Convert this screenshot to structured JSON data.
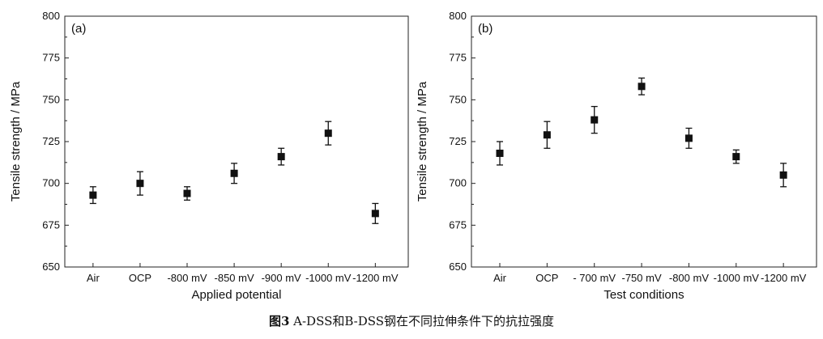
{
  "caption": {
    "figure_label": "图3",
    "text": "A-DSS和B-DSS钢在不同拉伸条件下的抗拉强度"
  },
  "chart_data": [
    {
      "type": "scatter",
      "panel_label": "(a)",
      "xlabel": "Applied potential",
      "ylabel": "Tensile strength / MPa",
      "categories": [
        "Air",
        "OCP",
        "-800 mV",
        "-850 mV",
        "-900 mV",
        "-1000 mV",
        "-1200 mV"
      ],
      "series": [
        {
          "values": [
            693,
            700,
            694,
            706,
            716,
            730,
            682
          ],
          "error": [
            5,
            7,
            4,
            6,
            5,
            7,
            6
          ]
        }
      ],
      "ylim": [
        650,
        800
      ],
      "yticks": [
        650,
        675,
        700,
        725,
        750,
        775,
        800
      ],
      "grid": false,
      "marker": "square",
      "color": "#111111"
    },
    {
      "type": "scatter",
      "panel_label": "(b)",
      "xlabel": "Test conditions",
      "ylabel": "Tensile strength / MPa",
      "categories": [
        "Air",
        "OCP",
        "- 700 mV",
        "-750 mV",
        "-800 mV",
        "-1000 mV",
        "-1200 mV"
      ],
      "series": [
        {
          "values": [
            718,
            729,
            738,
            758,
            727,
            716,
            705
          ],
          "error": [
            7,
            8,
            8,
            5,
            6,
            4,
            7
          ]
        }
      ],
      "ylim": [
        650,
        800
      ],
      "yticks": [
        650,
        675,
        700,
        725,
        750,
        775,
        800
      ],
      "grid": false,
      "marker": "square",
      "color": "#111111"
    }
  ]
}
